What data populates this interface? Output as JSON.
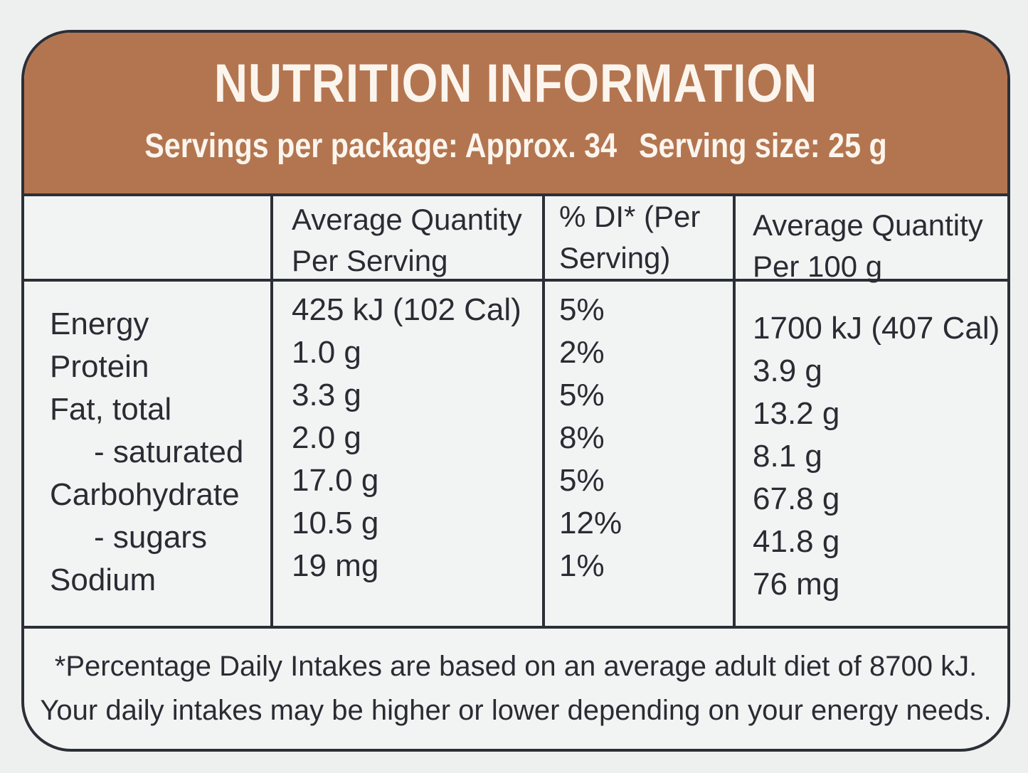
{
  "title": "NUTRITION INFORMATION",
  "servings_per_package": "Servings per package: Approx. 34",
  "serving_size": "Serving size: 25 g",
  "columns": {
    "per_serving": [
      "Average Quantity",
      "Per Serving"
    ],
    "di": [
      "% DI* (Per",
      "Serving)"
    ],
    "per_100g": [
      "Average Quantity",
      "Per 100 g"
    ]
  },
  "rows": [
    {
      "name": "Energy",
      "per_serving": "425 kJ (102 Cal)",
      "di": "5%",
      "per_100g": "1700 kJ (407 Cal)"
    },
    {
      "name": "Protein",
      "per_serving": "1.0 g",
      "di": "2%",
      "per_100g": "3.9 g"
    },
    {
      "name": "Fat, total",
      "per_serving": "3.3 g",
      "di": "5%",
      "per_100g": "13.2 g"
    },
    {
      "name": "- saturated",
      "per_serving": "2.0 g",
      "di": "8%",
      "per_100g": "8.1 g"
    },
    {
      "name": "Carbohydrate",
      "per_serving": "17.0 g",
      "di": "5%",
      "per_100g": "67.8 g"
    },
    {
      "name": "- sugars",
      "per_serving": "10.5 g",
      "di": "12%",
      "per_100g": "41.8 g"
    },
    {
      "name": "Sodium",
      "per_serving": "19 mg",
      "di": "1%",
      "per_100g": "76 mg"
    }
  ],
  "footnote": [
    "*Percentage Daily Intakes are based on an average adult diet of 8700 kJ.",
    "Your daily intakes may be higher or lower depending on your energy needs."
  ]
}
